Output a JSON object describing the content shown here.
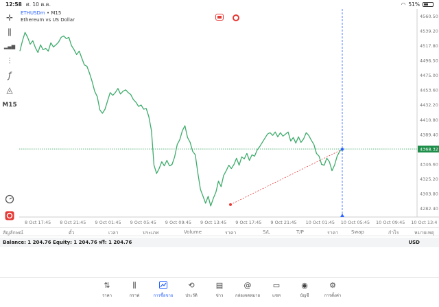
{
  "status": {
    "time": "12:58",
    "date": "ศ. 10 ต.ค.",
    "battery": "51%"
  },
  "symbol": {
    "name": "ETHUSDm",
    "timeframe": "• M15",
    "description": "Ethereum vs US Dollar"
  },
  "toolbar": {
    "items": [
      {
        "icon": "crosshair-icon",
        "glyph": "✛"
      },
      {
        "icon": "candles-icon",
        "glyph": "⫼"
      },
      {
        "icon": "indicators-icon",
        "glyph": "▂▄▆"
      },
      {
        "icon": "adjust-icon",
        "glyph": "⫶"
      },
      {
        "icon": "function-icon",
        "glyph": "ƒ"
      },
      {
        "icon": "shapes-icon",
        "glyph": "◬"
      }
    ],
    "timeframe": "M15",
    "bottom_icons": [
      "speedometer-icon",
      "app-logo-icon"
    ]
  },
  "chart_data": {
    "type": "line",
    "title": "",
    "ylim": [
      4270,
      4571
    ],
    "y_ticks": [
      "4560.50",
      "4539.20",
      "4517.80",
      "4496.50",
      "4475.00",
      "4453.60",
      "4432.20",
      "4410.80",
      "4389.40",
      "4368.32",
      "4346.60",
      "4325.20",
      "4303.80",
      "4282.40"
    ],
    "x_ticks": [
      "8 Oct 17:45",
      "8 Oct 21:45",
      "9 Oct 01:45",
      "9 Oct 05:45",
      "9 Oct 09:45",
      "9 Oct 13:45",
      "9 Oct 17:45",
      "9 Oct 21:45",
      "10 Oct 01:45",
      "10 Oct 05:45",
      "10 Oct 09:45",
      "10 Oct 13:4"
    ],
    "current_price": "4368.32",
    "series": [
      {
        "values": [
          4510,
          4525,
          4537,
          4530,
          4520,
          4525,
          4515,
          4508,
          4519,
          4512,
          4514,
          4510,
          4522,
          4516,
          4519,
          4523,
          4530,
          4532,
          4528,
          4530,
          4518,
          4512,
          4505,
          4510,
          4500,
          4490,
          4488,
          4478,
          4466,
          4452,
          4444,
          4425,
          4420,
          4426,
          4438,
          4450,
          4446,
          4450,
          4456,
          4448,
          4452,
          4454,
          4450,
          4447,
          4440,
          4436,
          4430,
          4432,
          4426,
          4427,
          4415,
          4395,
          4345,
          4333,
          4340,
          4350,
          4344,
          4352,
          4344,
          4346,
          4357,
          4375,
          4382,
          4395,
          4402,
          4385,
          4378,
          4365,
          4360,
          4334,
          4310,
          4300,
          4290,
          4300,
          4286,
          4297,
          4306,
          4322,
          4314,
          4330,
          4337,
          4345,
          4340,
          4346,
          4355,
          4345,
          4357,
          4354,
          4362,
          4352,
          4360,
          4358,
          4367,
          4372,
          4378,
          4384,
          4390,
          4392,
          4388,
          4393,
          4386,
          4392,
          4387,
          4390,
          4393,
          4380,
          4385,
          4377,
          4386,
          4378,
          4383,
          4392,
          4388,
          4381,
          4375,
          4362,
          4358,
          4346,
          4345,
          4355,
          4350,
          4337,
          4345,
          4358,
          4365,
          4368
        ],
        "color": "#3dab6b"
      }
    ],
    "trade_line": {
      "from": 4288,
      "to": 4368,
      "color": "#e53935"
    }
  },
  "columns": [
    "สัญลักษณ์",
    "ตั๋ว",
    "เวลา",
    "ประเภท",
    "Volume",
    "ราคา",
    "S/L",
    "T/P",
    "ราคา",
    "Swap",
    "กำไร",
    "หมายเหตุ"
  ],
  "balance": {
    "text": "Balance: 1 204.76 Equity: 1 204.76 ฟรี: 1 204.76",
    "currency": "USD"
  },
  "tabs": [
    {
      "label": "ราคา",
      "icon": "quotes-icon",
      "glyph": "⇅"
    },
    {
      "label": "กราฟ",
      "icon": "chart-icon",
      "glyph": "⫼"
    },
    {
      "label": "การซื้อขาย",
      "icon": "trade-icon",
      "glyph": "📈",
      "active": true
    },
    {
      "label": "ประวัติ",
      "icon": "history-icon",
      "glyph": "⟲"
    },
    {
      "label": "ข่าว",
      "icon": "news-icon",
      "glyph": "▤"
    },
    {
      "label": "กล่องจดหมาย",
      "icon": "mailbox-icon",
      "glyph": "@"
    },
    {
      "label": "แชท",
      "icon": "chat-icon",
      "glyph": "▭"
    },
    {
      "label": "บัญชี",
      "icon": "account-icon",
      "glyph": "◉"
    },
    {
      "label": "การตั้งค่า",
      "icon": "settings-icon",
      "glyph": "⚙"
    }
  ]
}
